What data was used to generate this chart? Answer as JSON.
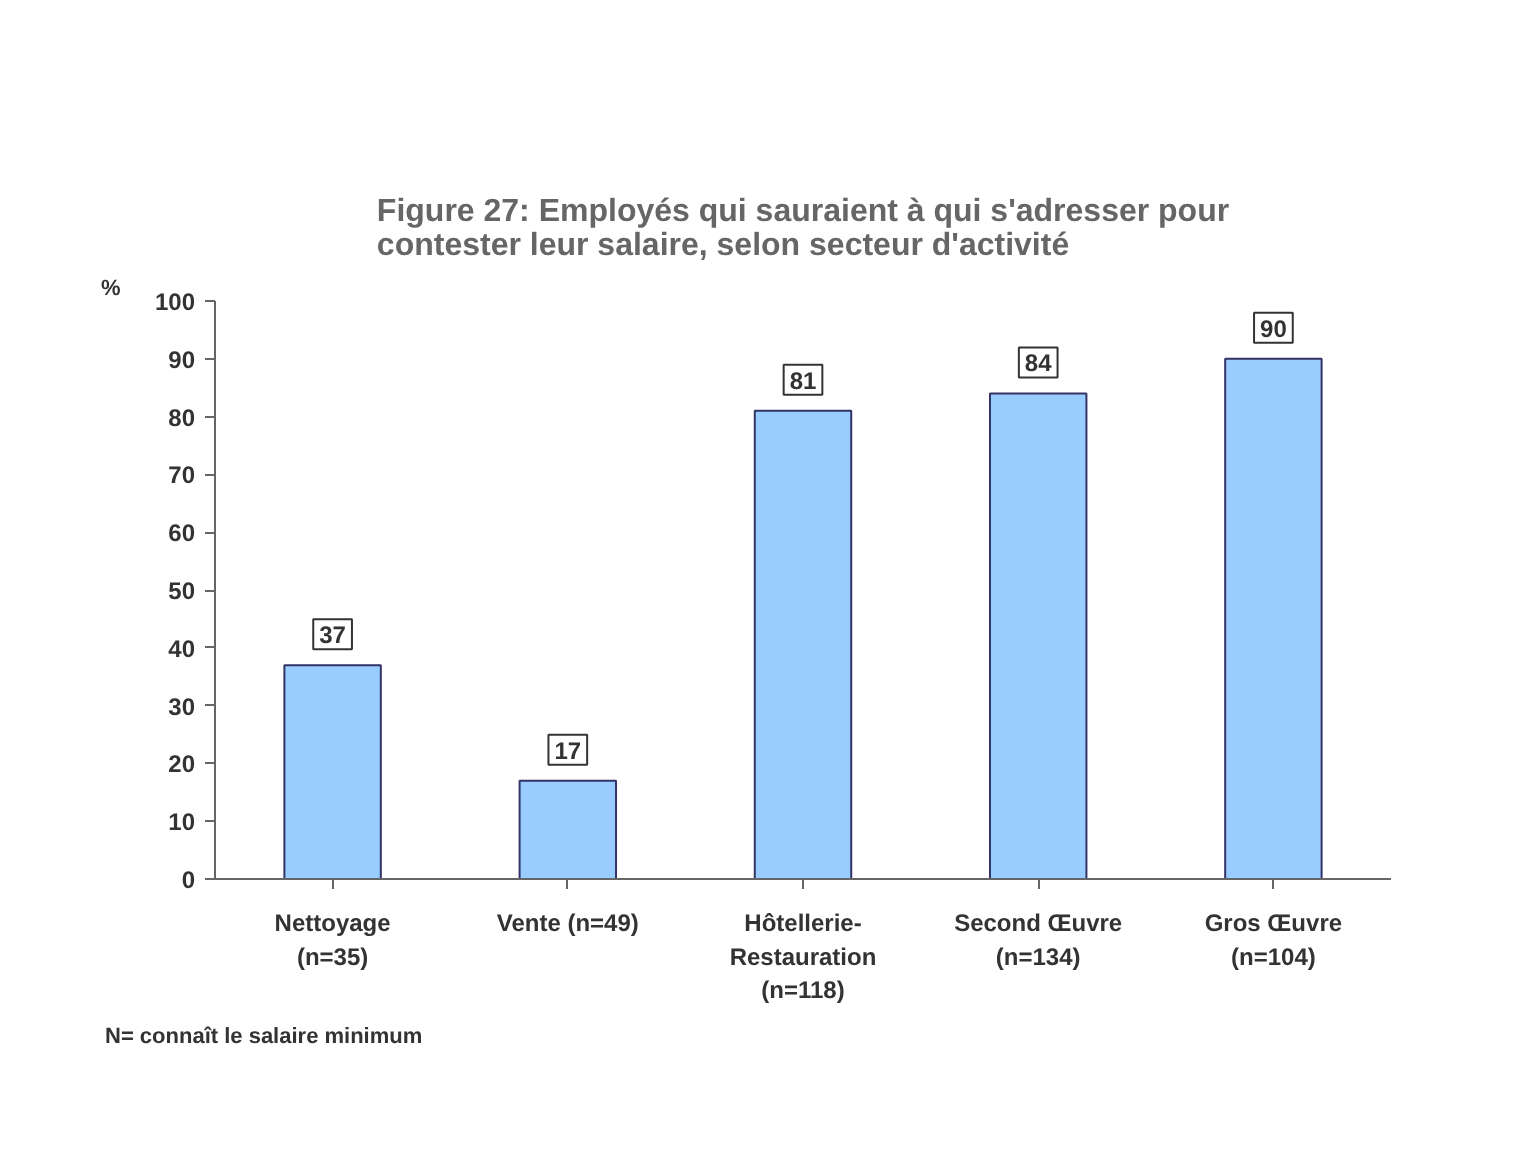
{
  "chart_data": {
    "type": "bar",
    "title": "Figure 27: Employés qui sauraient à qui s'adresser pour\ncontester leur salaire, selon secteur d'activité",
    "ylabel": "%",
    "categories": [
      "Nettoyage\n(n=35)",
      "Vente (n=49)",
      "Hôtellerie-\nRestauration\n(n=118)",
      "Second Œuvre\n(n=134)",
      "Gros Œuvre\n(n=104)"
    ],
    "values": [
      37,
      17,
      81,
      84,
      90
    ],
    "color": "#99ccff",
    "ylim": [
      0,
      100
    ],
    "yticks": [
      0,
      10,
      20,
      30,
      40,
      50,
      60,
      70,
      80,
      90,
      100
    ],
    "grid": false,
    "data_labels": true,
    "annotations": [
      "N= connaît le salaire minimum"
    ]
  }
}
